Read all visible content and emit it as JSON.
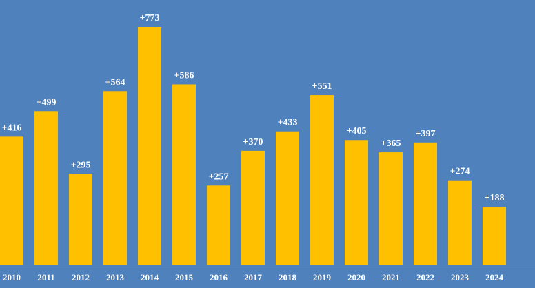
{
  "colors": {
    "background": "#4f81bd",
    "bar": "#ffc000",
    "text": "#ffffff",
    "axis_line": "#3f6ea8"
  },
  "chart_data": {
    "type": "bar",
    "title": "",
    "xlabel": "",
    "ylabel": "",
    "categories": [
      "2010",
      "2011",
      "2012",
      "2013",
      "2014",
      "2015",
      "2016",
      "2017",
      "2018",
      "2019",
      "2020",
      "2021",
      "2022",
      "2023",
      "2024"
    ],
    "values": [
      416,
      499,
      295,
      564,
      773,
      586,
      257,
      370,
      433,
      551,
      405,
      365,
      397,
      274,
      188
    ],
    "data_labels": [
      "+416",
      "+499",
      "+295",
      "+564",
      "+773",
      "+586",
      "+257",
      "+370",
      "+433",
      "+551",
      "+405",
      "+365",
      "+397",
      "+274",
      "+188"
    ],
    "ylim": [
      0,
      773
    ],
    "grid": false,
    "legend": "none"
  }
}
